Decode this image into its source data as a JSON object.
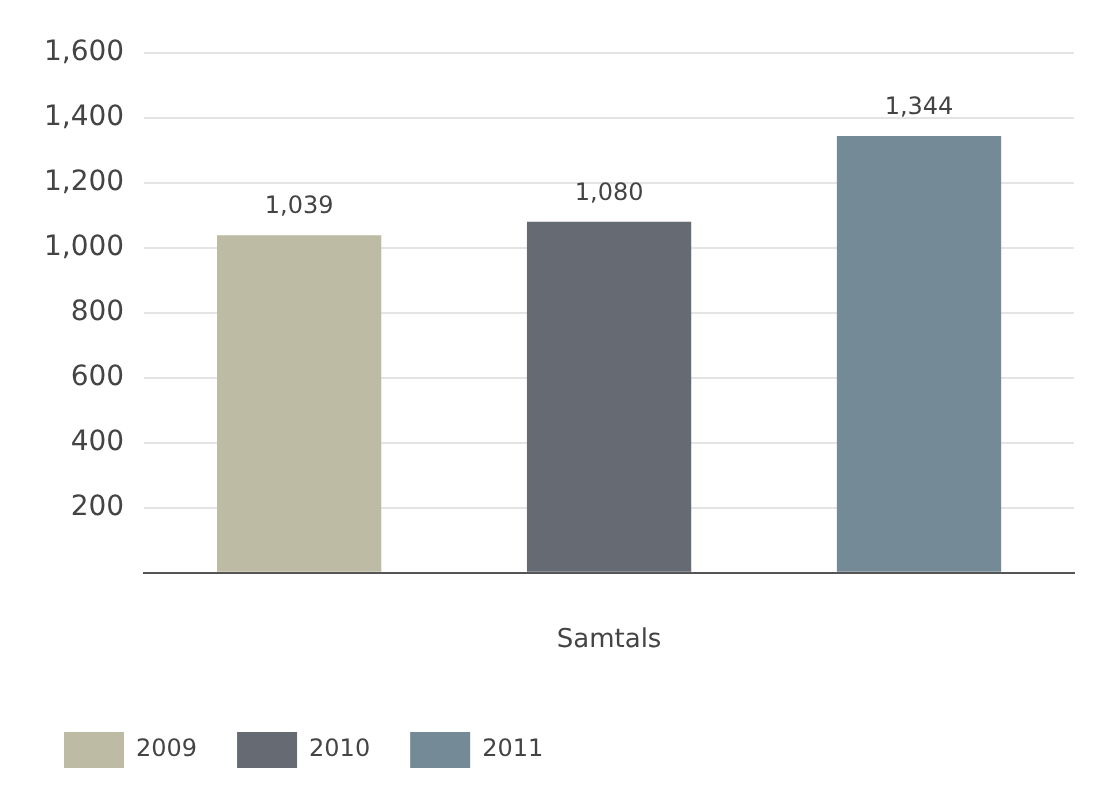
{
  "chart_data": {
    "type": "bar",
    "categories": [
      "Samtals"
    ],
    "series": [
      {
        "name": "2009",
        "color": "#bdbba3",
        "values": [
          1039
        ],
        "value_labels": [
          "1,039"
        ]
      },
      {
        "name": "2010",
        "color": "#666a72",
        "values": [
          1080
        ],
        "value_labels": [
          "1,080"
        ]
      },
      {
        "name": "2011",
        "color": "#748a96",
        "values": [
          1344
        ],
        "value_labels": [
          "1,344"
        ]
      }
    ],
    "ylim": [
      0,
      1600
    ],
    "yticks": [
      {
        "value": 0,
        "label": null
      },
      200,
      400,
      600,
      800,
      {
        "value": 1000,
        "label": "1,000"
      },
      {
        "value": 1200,
        "label": "1,200"
      },
      {
        "value": 1400,
        "label": "1,400"
      },
      {
        "value": 1600,
        "label": "1,600"
      }
    ],
    "grid": "y",
    "legend": "bottom left"
  }
}
